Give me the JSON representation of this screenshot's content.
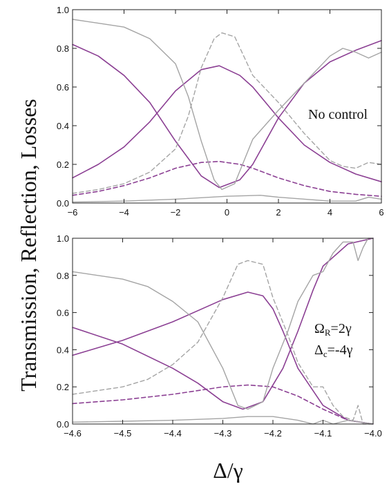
{
  "figure": {
    "ylabel": "Transmission,  Reflection,  Losses",
    "xlabel": "Δ/γ"
  },
  "colors": {
    "purple": "#8b3f93",
    "gray": "#a4a4a4",
    "frame": "#222222"
  },
  "chart_data": [
    {
      "type": "line",
      "annotation": "No control",
      "xlim": [
        -6,
        6
      ],
      "ylim": [
        0,
        1
      ],
      "xticks": [
        -6,
        -4,
        -2,
        0,
        2,
        4,
        6
      ],
      "xtick_labels": [
        "−6",
        "−4",
        "−2",
        "0",
        "2",
        "4",
        "6"
      ],
      "yticks": [
        0,
        0.2,
        0.4,
        0.6,
        0.8,
        1.0
      ],
      "ytick_labels": [
        "0.0",
        "0.2",
        "0.4",
        "0.6",
        "0.8",
        "1.0"
      ],
      "series": [
        {
          "color": "purple",
          "style": "solid",
          "x": [
            -6,
            -5,
            -4,
            -3,
            -2,
            -1,
            -0.3,
            0.5,
            1,
            2,
            3,
            4,
            5,
            6
          ],
          "y": [
            0.82,
            0.76,
            0.66,
            0.52,
            0.32,
            0.14,
            0.08,
            0.12,
            0.2,
            0.44,
            0.62,
            0.73,
            0.79,
            0.84
          ]
        },
        {
          "color": "purple",
          "style": "solid",
          "x": [
            -6,
            -5,
            -4,
            -3,
            -2,
            -1,
            -0.3,
            0.5,
            1,
            2,
            3,
            4,
            5,
            6
          ],
          "y": [
            0.13,
            0.2,
            0.29,
            0.42,
            0.58,
            0.69,
            0.71,
            0.66,
            0.6,
            0.44,
            0.3,
            0.21,
            0.15,
            0.11
          ]
        },
        {
          "color": "purple",
          "style": "dashed",
          "x": [
            -6,
            -5,
            -4,
            -3,
            -2,
            -1,
            -0.3,
            0.5,
            1,
            2,
            3,
            4,
            5,
            6
          ],
          "y": [
            0.04,
            0.06,
            0.09,
            0.13,
            0.18,
            0.21,
            0.215,
            0.2,
            0.18,
            0.13,
            0.09,
            0.06,
            0.045,
            0.035
          ]
        },
        {
          "color": "gray",
          "style": "solid",
          "x": [
            -6,
            -5,
            -4,
            -3,
            -2,
            -1.5,
            -1,
            -0.5,
            -0.2,
            0.3,
            1,
            2,
            3,
            4,
            4.5,
            5,
            5.5,
            6
          ],
          "y": [
            0.95,
            0.93,
            0.91,
            0.85,
            0.72,
            0.55,
            0.32,
            0.12,
            0.07,
            0.1,
            0.33,
            0.48,
            0.62,
            0.76,
            0.8,
            0.78,
            0.75,
            0.78
          ]
        },
        {
          "color": "gray",
          "style": "dashed",
          "x": [
            -6,
            -5,
            -4,
            -3,
            -2,
            -1.5,
            -1,
            -0.5,
            -0.2,
            0.3,
            1,
            2,
            3,
            4,
            4.5,
            5,
            5.5,
            6
          ],
          "y": [
            0.05,
            0.07,
            0.1,
            0.16,
            0.28,
            0.45,
            0.7,
            0.85,
            0.88,
            0.86,
            0.66,
            0.52,
            0.36,
            0.22,
            0.19,
            0.18,
            0.21,
            0.2
          ]
        },
        {
          "color": "gray",
          "style": "solid",
          "x": [
            -6,
            -4,
            -2,
            0,
            1.3,
            2,
            4,
            5,
            5.5,
            6
          ],
          "y": [
            0.005,
            0.01,
            0.02,
            0.035,
            0.04,
            0.03,
            0.01,
            0.01,
            0.03,
            0.02
          ]
        }
      ]
    },
    {
      "type": "line",
      "annotation_lines": [
        "Ω_R=2γ",
        "Δ_c=-4γ"
      ],
      "xlim": [
        -4.6,
        -4.0
      ],
      "ylim": [
        0,
        1
      ],
      "xticks": [
        -4.6,
        -4.5,
        -4.4,
        -4.3,
        -4.2,
        -4.1,
        -4.0
      ],
      "xtick_labels": [
        "−4.6",
        "−4.5",
        "−4.4",
        "−4.3",
        "−4.2",
        "−4.1",
        "−4.0"
      ],
      "yticks": [
        0,
        0.2,
        0.4,
        0.6,
        0.8,
        1.0
      ],
      "ytick_labels": [
        "0.0",
        "0.2",
        "0.4",
        "0.6",
        "0.8",
        "1.0"
      ],
      "series": [
        {
          "color": "purple",
          "style": "solid",
          "x": [
            -4.6,
            -4.5,
            -4.4,
            -4.35,
            -4.3,
            -4.26,
            -4.22,
            -4.18,
            -4.15,
            -4.12,
            -4.1,
            -4.05,
            -4.0
          ],
          "y": [
            0.52,
            0.43,
            0.3,
            0.22,
            0.12,
            0.08,
            0.12,
            0.3,
            0.5,
            0.72,
            0.85,
            0.97,
            1.0
          ]
        },
        {
          "color": "purple",
          "style": "solid",
          "x": [
            -4.6,
            -4.5,
            -4.4,
            -4.3,
            -4.25,
            -4.22,
            -4.2,
            -4.18,
            -4.15,
            -4.1,
            -4.05,
            -4.0
          ],
          "y": [
            0.37,
            0.45,
            0.55,
            0.67,
            0.71,
            0.69,
            0.62,
            0.5,
            0.3,
            0.1,
            0.02,
            0.0
          ]
        },
        {
          "color": "purple",
          "style": "dashed",
          "x": [
            -4.6,
            -4.5,
            -4.4,
            -4.3,
            -4.25,
            -4.2,
            -4.15,
            -4.1,
            -4.05,
            -4.0
          ],
          "y": [
            0.11,
            0.13,
            0.16,
            0.2,
            0.21,
            0.2,
            0.15,
            0.08,
            0.02,
            0.0
          ]
        },
        {
          "color": "gray",
          "style": "solid",
          "x": [
            -4.6,
            -4.5,
            -4.45,
            -4.4,
            -4.35,
            -4.3,
            -4.27,
            -4.25,
            -4.22,
            -4.2,
            -4.17,
            -4.15,
            -4.12,
            -4.1,
            -4.08,
            -4.06,
            -4.04,
            -4.03,
            -4.02,
            -4.01,
            -4.0
          ],
          "y": [
            0.82,
            0.78,
            0.74,
            0.66,
            0.55,
            0.3,
            0.1,
            0.08,
            0.12,
            0.3,
            0.5,
            0.66,
            0.8,
            0.82,
            0.92,
            0.98,
            0.98,
            0.88,
            0.95,
            1.0,
            1.0
          ]
        },
        {
          "color": "gray",
          "style": "dashed",
          "x": [
            -4.6,
            -4.5,
            -4.45,
            -4.4,
            -4.35,
            -4.3,
            -4.27,
            -4.25,
            -4.22,
            -4.2,
            -4.17,
            -4.15,
            -4.12,
            -4.1,
            -4.08,
            -4.06,
            -4.04,
            -4.03,
            -4.02,
            -4.01,
            -4.0
          ],
          "y": [
            0.16,
            0.2,
            0.24,
            0.32,
            0.44,
            0.68,
            0.86,
            0.88,
            0.86,
            0.68,
            0.48,
            0.33,
            0.2,
            0.2,
            0.1,
            0.04,
            0.02,
            0.1,
            0.0,
            0.0,
            0.0
          ]
        },
        {
          "color": "gray",
          "style": "solid",
          "x": [
            -4.6,
            -4.5,
            -4.4,
            -4.3,
            -4.25,
            -4.2,
            -4.15,
            -4.12,
            -4.1,
            -4.08,
            -4.05,
            -4.0
          ],
          "y": [
            0.01,
            0.015,
            0.02,
            0.03,
            0.04,
            0.04,
            0.02,
            0.0,
            0.02,
            0.0,
            0.02,
            0.0
          ]
        }
      ]
    }
  ]
}
